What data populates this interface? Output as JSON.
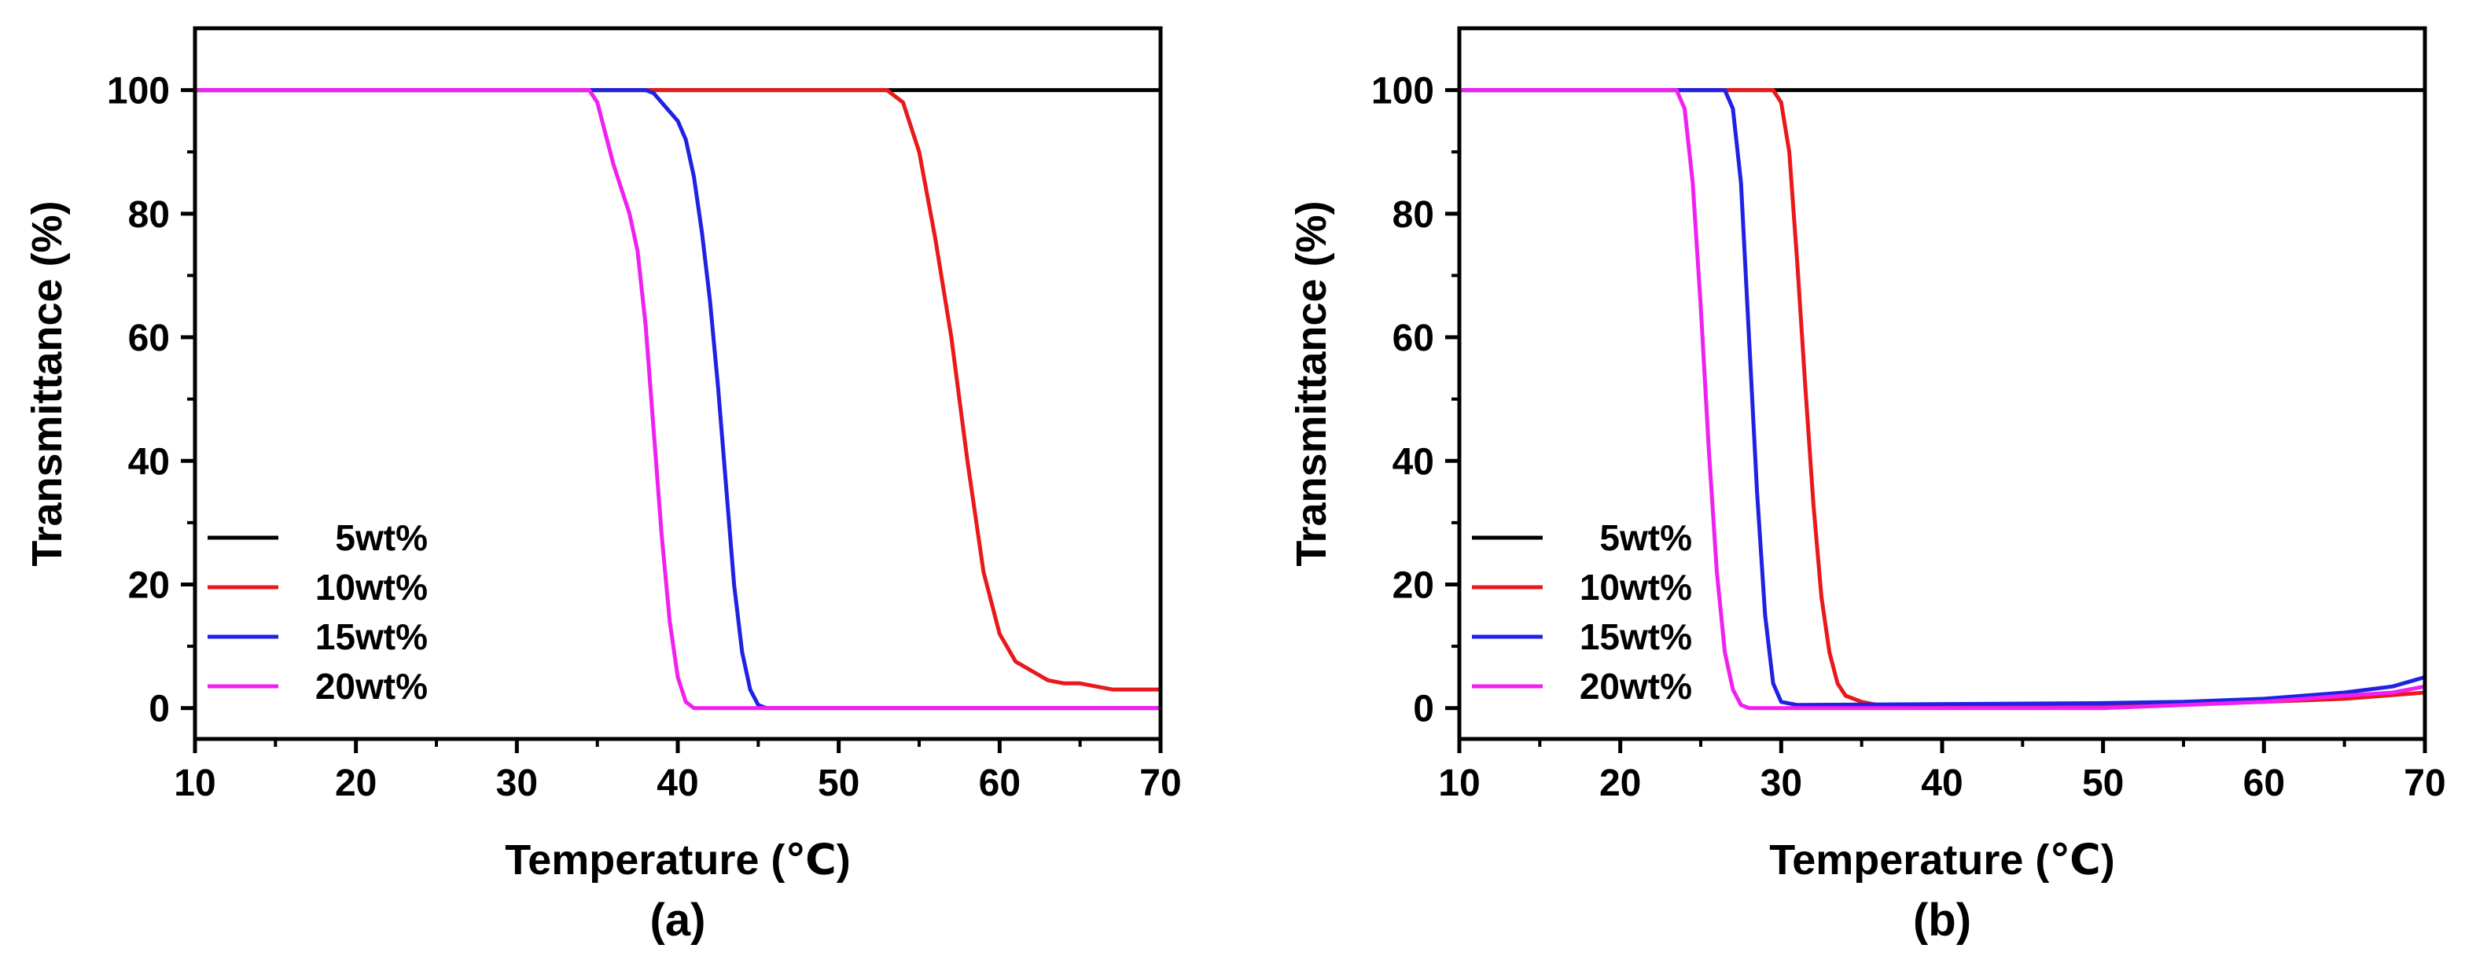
{
  "chart_data": [
    {
      "type": "line",
      "panel_label": "(a)",
      "xlabel": "Temperature (℃)",
      "ylabel": "Transmittance (%)",
      "xlim": [
        10,
        70
      ],
      "ylim": [
        -5,
        110
      ],
      "xticks": [
        10,
        20,
        30,
        40,
        50,
        60,
        70
      ],
      "yticks": [
        0,
        20,
        40,
        60,
        80,
        100
      ],
      "legend_position": "bottom-left",
      "series": [
        {
          "name": "5wt%",
          "color": "#000000",
          "points": [
            [
              10,
              100
            ],
            [
              70,
              100
            ]
          ]
        },
        {
          "name": "10wt%",
          "color": "#e8191b",
          "points": [
            [
              10,
              100
            ],
            [
              52,
              100
            ],
            [
              53,
              100
            ],
            [
              54,
              98
            ],
            [
              55,
              90
            ],
            [
              56,
              76
            ],
            [
              57,
              60
            ],
            [
              58,
              40
            ],
            [
              59,
              22
            ],
            [
              60,
              12
            ],
            [
              61,
              7.5
            ],
            [
              62,
              6
            ],
            [
              63,
              4.5
            ],
            [
              64,
              4
            ],
            [
              65,
              4
            ],
            [
              66,
              3.5
            ],
            [
              67,
              3
            ],
            [
              68,
              3
            ],
            [
              70,
              3
            ]
          ]
        },
        {
          "name": "15wt%",
          "color": "#1f22e0",
          "points": [
            [
              10,
              100
            ],
            [
              38,
              100
            ],
            [
              38.5,
              99.5
            ],
            [
              39,
              98
            ],
            [
              40,
              95
            ],
            [
              40.5,
              92
            ],
            [
              41,
              86
            ],
            [
              41.5,
              77
            ],
            [
              42,
              66
            ],
            [
              42.5,
              52
            ],
            [
              43,
              36
            ],
            [
              43.5,
              20
            ],
            [
              44,
              9
            ],
            [
              44.5,
              3
            ],
            [
              45,
              0.5
            ],
            [
              45.5,
              0
            ],
            [
              70,
              0
            ]
          ]
        },
        {
          "name": "20wt%",
          "color": "#f020f0",
          "points": [
            [
              10,
              100
            ],
            [
              34.5,
              100
            ],
            [
              35,
              98
            ],
            [
              35.5,
              93
            ],
            [
              36,
              88
            ],
            [
              37,
              80
            ],
            [
              37.5,
              74
            ],
            [
              38,
              62
            ],
            [
              38.5,
              45
            ],
            [
              39,
              28
            ],
            [
              39.5,
              14
            ],
            [
              40,
              5
            ],
            [
              40.5,
              1
            ],
            [
              41,
              0
            ],
            [
              70,
              0
            ]
          ]
        }
      ]
    },
    {
      "type": "line",
      "panel_label": "(b)",
      "xlabel": "Temperature (℃)",
      "ylabel": "Transmittance (%)",
      "xlim": [
        10,
        70
      ],
      "ylim": [
        -5,
        110
      ],
      "xticks": [
        10,
        20,
        30,
        40,
        50,
        60,
        70
      ],
      "yticks": [
        0,
        20,
        40,
        60,
        80,
        100
      ],
      "legend_position": "bottom-left",
      "series": [
        {
          "name": "5wt%",
          "color": "#000000",
          "points": [
            [
              10,
              100
            ],
            [
              70,
              100
            ]
          ]
        },
        {
          "name": "10wt%",
          "color": "#e8191b",
          "points": [
            [
              10,
              100
            ],
            [
              29.5,
              100
            ],
            [
              30,
              98
            ],
            [
              30.5,
              90
            ],
            [
              31,
              72
            ],
            [
              31.5,
              52
            ],
            [
              32,
              33
            ],
            [
              32.5,
              18
            ],
            [
              33,
              9
            ],
            [
              33.5,
              4
            ],
            [
              34,
              2
            ],
            [
              35,
              1
            ],
            [
              36,
              0.5
            ],
            [
              50,
              0.5
            ],
            [
              60,
              1
            ],
            [
              65,
              1.5
            ],
            [
              70,
              2.5
            ]
          ]
        },
        {
          "name": "15wt%",
          "color": "#1f22e0",
          "points": [
            [
              10,
              100
            ],
            [
              26.5,
              100
            ],
            [
              27,
              97
            ],
            [
              27.5,
              85
            ],
            [
              28,
              60
            ],
            [
              28.5,
              35
            ],
            [
              29,
              15
            ],
            [
              29.5,
              4
            ],
            [
              30,
              1
            ],
            [
              31,
              0.5
            ],
            [
              50,
              0.8
            ],
            [
              55,
              1
            ],
            [
              60,
              1.5
            ],
            [
              65,
              2.5
            ],
            [
              68,
              3.5
            ],
            [
              70,
              5
            ]
          ]
        },
        {
          "name": "20wt%",
          "color": "#f020f0",
          "points": [
            [
              10,
              100
            ],
            [
              23.5,
              100
            ],
            [
              24,
              97
            ],
            [
              24.5,
              85
            ],
            [
              25,
              65
            ],
            [
              25.5,
              42
            ],
            [
              26,
              22
            ],
            [
              26.5,
              9
            ],
            [
              27,
              3
            ],
            [
              27.5,
              0.5
            ],
            [
              28,
              0
            ],
            [
              50,
              0
            ],
            [
              55,
              0.5
            ],
            [
              60,
              1
            ],
            [
              65,
              2
            ],
            [
              68,
              2.5
            ],
            [
              70,
              3.5
            ]
          ]
        }
      ]
    }
  ]
}
